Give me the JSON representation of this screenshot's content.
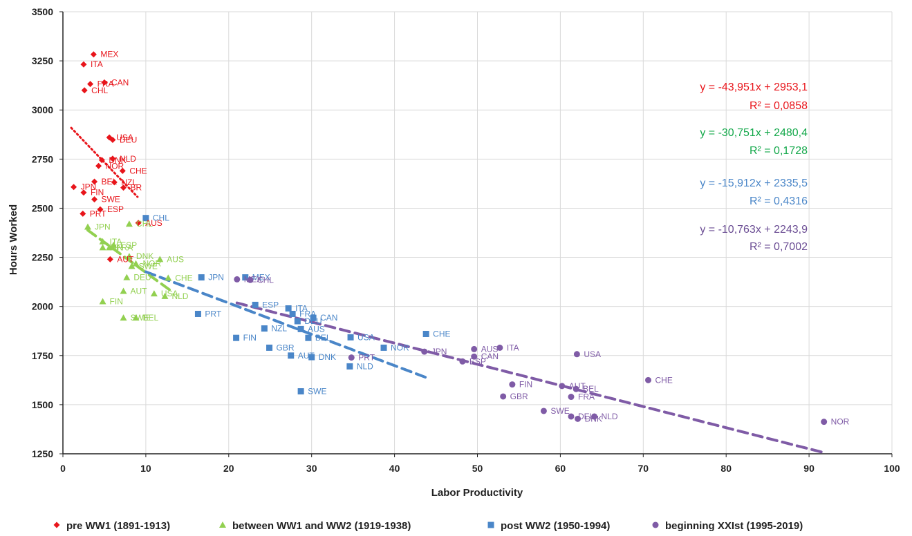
{
  "chart_data": {
    "type": "scatter",
    "xlabel": "Labor Productivity",
    "ylabel": "Hours Worked",
    "xlim": [
      0,
      100
    ],
    "ylim": [
      1250,
      3500
    ],
    "xticks": [
      0,
      10,
      20,
      30,
      40,
      50,
      60,
      70,
      80,
      90,
      100
    ],
    "yticks": [
      1250,
      1500,
      1750,
      2000,
      2250,
      2500,
      2750,
      3000,
      3250,
      3500
    ],
    "grid": true,
    "legend_position": "bottom",
    "series": [
      {
        "name": "pre WW1 (1891-1913)",
        "marker": "diamond",
        "color": "#e8151b",
        "trend": {
          "slope": -43.951,
          "intercept": 2953.1,
          "x_range": [
            1,
            9
          ],
          "style": "dotted",
          "equation": "y = -43,951x + 2953,1",
          "r2": "R² = 0,0858"
        },
        "points": [
          {
            "label": "MEX",
            "x": 3.7,
            "y": 3283
          },
          {
            "label": "ITA",
            "x": 2.5,
            "y": 3232
          },
          {
            "label": "CAN",
            "x": 5.0,
            "y": 3140
          },
          {
            "label": "FRA",
            "x": 3.3,
            "y": 3132
          },
          {
            "label": "CHL",
            "x": 2.6,
            "y": 3100
          },
          {
            "label": "USA",
            "x": 5.6,
            "y": 2860
          },
          {
            "label": "DEU",
            "x": 6.0,
            "y": 2848
          },
          {
            "label": "NLD",
            "x": 6.0,
            "y": 2752
          },
          {
            "label": "DNK",
            "x": 4.7,
            "y": 2745
          },
          {
            "label": "NOR",
            "x": 4.3,
            "y": 2715
          },
          {
            "label": "CHE",
            "x": 7.2,
            "y": 2690
          },
          {
            "label": "BEL",
            "x": 3.8,
            "y": 2635
          },
          {
            "label": "NZL",
            "x": 6.2,
            "y": 2632
          },
          {
            "label": "BR",
            "x": 7.3,
            "y": 2605
          },
          {
            "label": "JPN",
            "x": 1.3,
            "y": 2608
          },
          {
            "label": "FIN",
            "x": 2.5,
            "y": 2580
          },
          {
            "label": "SWE",
            "x": 3.8,
            "y": 2545
          },
          {
            "label": "ESP",
            "x": 4.5,
            "y": 2494
          },
          {
            "label": "PRT",
            "x": 2.4,
            "y": 2472
          },
          {
            "label": "AUS",
            "x": 9.1,
            "y": 2425
          },
          {
            "label": "AUT",
            "x": 5.7,
            "y": 2240
          }
        ]
      },
      {
        "name": "between WW1 and WW2 (1919-1938)",
        "marker": "triangle",
        "color": "#92d050",
        "trend": {
          "slope": -30.751,
          "intercept": 2480.4,
          "x_range": [
            3,
            13
          ],
          "style": "dashed",
          "equation": "y = -30,751x + 2480,4",
          "r2": "R² = 0,1728"
        },
        "points": [
          {
            "label": "JPN",
            "x": 3.0,
            "y": 2405
          },
          {
            "label": "CHL",
            "x": 8.0,
            "y": 2420
          },
          {
            "label": "ITA",
            "x": 4.8,
            "y": 2330
          },
          {
            "label": "ESP",
            "x": 6.1,
            "y": 2312
          },
          {
            "label": "FIN",
            "x": 4.8,
            "y": 2300
          },
          {
            "label": "FRA",
            "x": 5.6,
            "y": 2300
          },
          {
            "label": "DNK",
            "x": 8.0,
            "y": 2255
          },
          {
            "label": "AUS",
            "x": 11.7,
            "y": 2240
          },
          {
            "label": "NOR",
            "x": 8.8,
            "y": 2218
          },
          {
            "label": "SWE",
            "x": 8.3,
            "y": 2205
          },
          {
            "label": "DEU",
            "x": 7.7,
            "y": 2148
          },
          {
            "label": "CHE",
            "x": 12.7,
            "y": 2145
          },
          {
            "label": "AUT",
            "x": 7.3,
            "y": 2078
          },
          {
            "label": "USA",
            "x": 11.0,
            "y": 2065
          },
          {
            "label": "NLD",
            "x": 12.3,
            "y": 2052
          },
          {
            "label": "FIN",
            "x": 4.8,
            "y": 2025
          },
          {
            "label": "SWE",
            "x": 7.3,
            "y": 1942
          },
          {
            "label": "BEL",
            "x": 8.8,
            "y": 1942
          }
        ]
      },
      {
        "name": "post WW2 (1950-1994)",
        "marker": "square",
        "color": "#4a86c8",
        "trend": {
          "slope": -15.912,
          "intercept": 2335.5,
          "x_range": [
            10,
            44
          ],
          "style": "dashed",
          "equation": "y = -15,912x + 2335,5",
          "r2": "R² = 0,4316"
        },
        "points": [
          {
            "label": "CHL",
            "x": 10.0,
            "y": 2450
          },
          {
            "label": "JPN",
            "x": 16.7,
            "y": 2148
          },
          {
            "label": "MEX",
            "x": 22.0,
            "y": 2148
          },
          {
            "label": "PRT",
            "x": 16.3,
            "y": 1962
          },
          {
            "label": "ESP",
            "x": 23.2,
            "y": 2008
          },
          {
            "label": "ITA",
            "x": 27.2,
            "y": 1990
          },
          {
            "label": "FRA",
            "x": 27.7,
            "y": 1962
          },
          {
            "label": "DEU",
            "x": 28.3,
            "y": 1925
          },
          {
            "label": "CAN",
            "x": 30.2,
            "y": 1942
          },
          {
            "label": "NZL",
            "x": 24.3,
            "y": 1888
          },
          {
            "label": "AUS",
            "x": 28.7,
            "y": 1885
          },
          {
            "label": "FIN",
            "x": 20.9,
            "y": 1840
          },
          {
            "label": "BEL",
            "x": 29.6,
            "y": 1840
          },
          {
            "label": "USA",
            "x": 34.7,
            "y": 1843
          },
          {
            "label": "CHE",
            "x": 43.8,
            "y": 1860
          },
          {
            "label": "NOR",
            "x": 38.7,
            "y": 1790
          },
          {
            "label": "GBR",
            "x": 24.9,
            "y": 1790
          },
          {
            "label": "AUT",
            "x": 27.5,
            "y": 1750
          },
          {
            "label": "DNK",
            "x": 30.0,
            "y": 1742
          },
          {
            "label": "NLD",
            "x": 34.6,
            "y": 1695
          },
          {
            "label": "SWE",
            "x": 28.7,
            "y": 1568
          }
        ]
      },
      {
        "name": "beginning XXIst (1995-2019)",
        "marker": "circle",
        "color": "#7f5ba6",
        "trend": {
          "slope": -10.763,
          "intercept": 2243.9,
          "x_range": [
            21,
            92
          ],
          "style": "dashed",
          "equation": "y = -10,763x + 2243,9",
          "r2": "R² = 0,7002"
        },
        "points": [
          {
            "label": "MEX",
            "x": 21.0,
            "y": 2138
          },
          {
            "label": "CHL",
            "x": 22.6,
            "y": 2135
          },
          {
            "label": "ITA",
            "x": 52.7,
            "y": 1790
          },
          {
            "label": "AUS",
            "x": 49.6,
            "y": 1783
          },
          {
            "label": "JPN",
            "x": 43.6,
            "y": 1770
          },
          {
            "label": "CAN",
            "x": 49.6,
            "y": 1745
          },
          {
            "label": "ESP",
            "x": 48.2,
            "y": 1720
          },
          {
            "label": "PRT",
            "x": 34.8,
            "y": 1740
          },
          {
            "label": "USA",
            "x": 62.0,
            "y": 1757
          },
          {
            "label": "CHE",
            "x": 70.6,
            "y": 1625
          },
          {
            "label": "FIN",
            "x": 54.2,
            "y": 1603
          },
          {
            "label": "AUT",
            "x": 60.2,
            "y": 1595
          },
          {
            "label": "BEL",
            "x": 61.9,
            "y": 1580
          },
          {
            "label": "FRA",
            "x": 61.3,
            "y": 1540
          },
          {
            "label": "GBR",
            "x": 53.1,
            "y": 1542
          },
          {
            "label": "SWE",
            "x": 58.0,
            "y": 1468
          },
          {
            "label": "DEU",
            "x": 61.3,
            "y": 1440
          },
          {
            "label": "DNK",
            "x": 62.1,
            "y": 1428
          },
          {
            "label": "NLD",
            "x": 64.1,
            "y": 1440
          },
          {
            "label": "NOR",
            "x": 91.8,
            "y": 1413
          }
        ]
      }
    ]
  }
}
